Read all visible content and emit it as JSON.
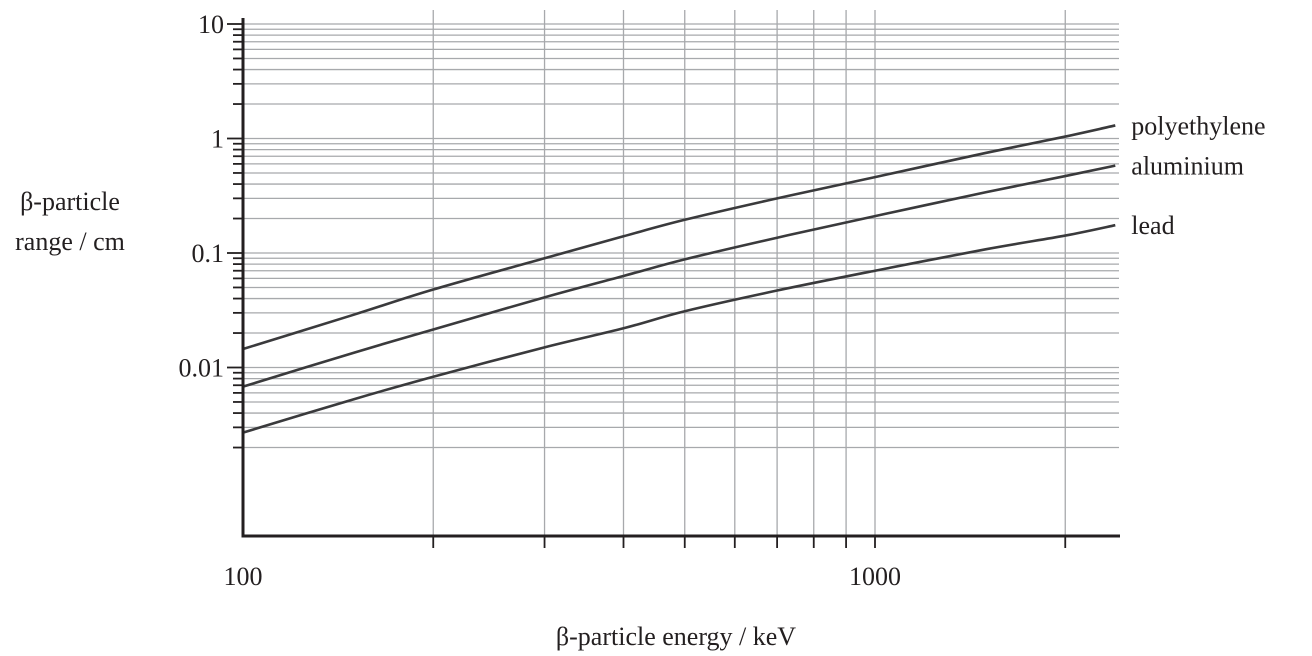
{
  "chart_data": {
    "type": "line",
    "title": "",
    "xlabel": "β-particle energy / keV",
    "ylabel_lines": [
      "β-particle",
      "range / cm"
    ],
    "x_scale": "log",
    "y_scale": "log",
    "xlim": [
      100,
      4000
    ],
    "ylim": [
      0.001,
      10
    ],
    "x_tick_labels": [
      {
        "value": 100,
        "label": "100"
      },
      {
        "value": 1000,
        "label": "1000"
      }
    ],
    "y_tick_labels": [
      {
        "value": 10,
        "label": "10"
      },
      {
        "value": 1,
        "label": "1"
      },
      {
        "value": 0.1,
        "label": "0.1"
      },
      {
        "value": 0.01,
        "label": "0.01"
      }
    ],
    "grid": true,
    "x_gridlines": [
      200,
      300,
      400,
      500,
      600,
      700,
      800,
      900,
      1000,
      2000
    ],
    "colors": {
      "grid": "#a7a9ac",
      "axis": "#231f20",
      "series": "#3a3a3c",
      "text": "#231f20"
    },
    "series": [
      {
        "name": "polyethylene",
        "x": [
          100,
          150,
          200,
          300,
          400,
          500,
          700,
          1000,
          1500,
          2000,
          2400
        ],
        "y": [
          0.0145,
          0.029,
          0.048,
          0.09,
          0.14,
          0.195,
          0.3,
          0.46,
          0.75,
          1.04,
          1.3
        ]
      },
      {
        "name": "aluminium",
        "x": [
          100,
          150,
          200,
          300,
          400,
          500,
          700,
          1000,
          1500,
          2000,
          2400
        ],
        "y": [
          0.0068,
          0.0135,
          0.0215,
          0.041,
          0.063,
          0.088,
          0.136,
          0.21,
          0.34,
          0.47,
          0.58
        ]
      },
      {
        "name": "lead",
        "x": [
          100,
          150,
          200,
          300,
          400,
          500,
          700,
          1000,
          1500,
          2000,
          2400
        ],
        "y": [
          0.0027,
          0.0053,
          0.0083,
          0.015,
          0.022,
          0.031,
          0.047,
          0.07,
          0.108,
          0.142,
          0.175
        ]
      }
    ]
  }
}
